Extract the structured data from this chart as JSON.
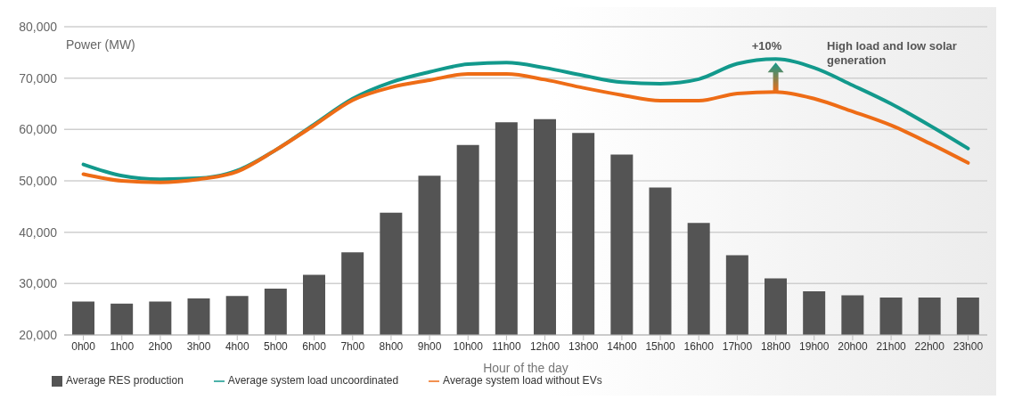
{
  "chart_data": {
    "type": "bar",
    "xlabel": "Hour of the day",
    "ylabel": "Power (MW)",
    "categories": [
      "0h00",
      "1h00",
      "2h00",
      "3h00",
      "4h00",
      "5h00",
      "6h00",
      "7h00",
      "8h00",
      "9h00",
      "10h00",
      "11h00",
      "12h00",
      "13h00",
      "14h00",
      "15h00",
      "16h00",
      "17h00",
      "18h00",
      "19h00",
      "20h00",
      "21h00",
      "22h00",
      "23h00"
    ],
    "series": [
      {
        "name": "Average RES production",
        "color": "#545454",
        "values": [
          26500,
          26100,
          26500,
          27100,
          27600,
          29000,
          31700,
          36100,
          43800,
          51000,
          57000,
          61400,
          62000,
          59300,
          55100,
          48700,
          41800,
          35500,
          31000,
          28500,
          27700,
          27300,
          27300,
          27300
        ]
      },
      {
        "name": "Average system load uncoordinated",
        "type": "line",
        "color": "#12998c",
        "values": [
          53200,
          51000,
          50300,
          50500,
          52000,
          56000,
          61000,
          66000,
          69200,
          71200,
          72700,
          73000,
          72000,
          70500,
          69200,
          68900,
          69800,
          72800,
          73700,
          72000,
          68600,
          65000,
          60800,
          56300
        ]
      },
      {
        "name": "Average system load without EVs",
        "type": "line",
        "color": "#ee6c16",
        "values": [
          51300,
          50000,
          49700,
          50300,
          51800,
          56000,
          60800,
          65700,
          68200,
          69600,
          70800,
          70800,
          69700,
          68100,
          66700,
          65600,
          65600,
          67000,
          67300,
          66000,
          63500,
          60800,
          57300,
          53500
        ]
      }
    ],
    "ylim": [
      20000,
      80000
    ],
    "yticks": [
      {
        "value": 20000,
        "label": "20,000"
      },
      {
        "value": 30000,
        "label": "30,000"
      },
      {
        "value": 40000,
        "label": "40,000"
      },
      {
        "value": 50000,
        "label": "50,000"
      },
      {
        "value": 60000,
        "label": "60,000"
      },
      {
        "value": 70000,
        "label": "70,000"
      },
      {
        "value": 80000,
        "label": "80,000"
      }
    ],
    "grid": "y",
    "legend": "bottom left",
    "marker": "none",
    "line_style": "solid",
    "annotations": [
      {
        "text": "+10%",
        "x": "18h00",
        "y": 73700
      },
      "High load and low solar generation"
    ]
  }
}
